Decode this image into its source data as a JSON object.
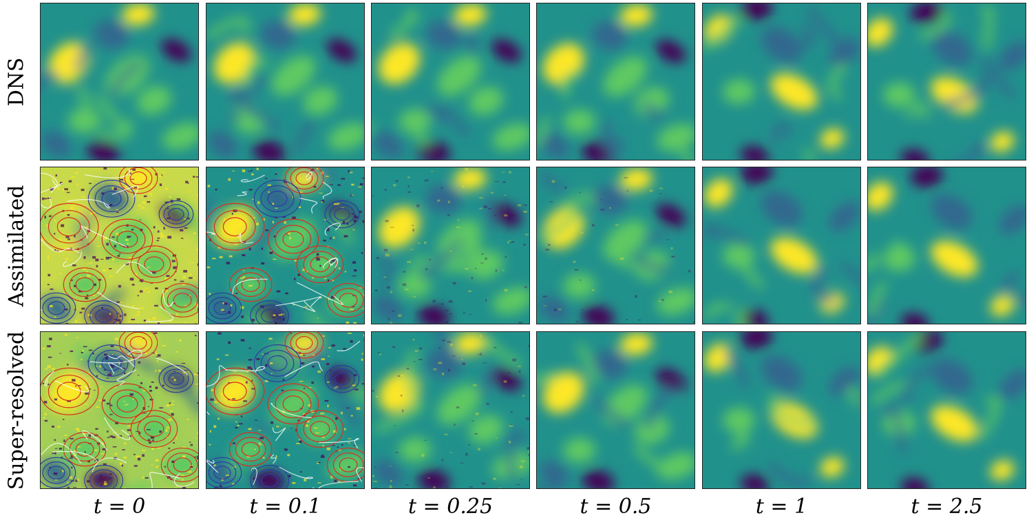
{
  "figure": {
    "rows": [
      {
        "label": "DNS",
        "style": "dns"
      },
      {
        "label": "Assimilated",
        "style": "assim"
      },
      {
        "label": "Super-resolved",
        "style": "super"
      }
    ],
    "columns": [
      {
        "label": "t = 0",
        "t": 0
      },
      {
        "label": "t = 0.1",
        "t": 0.1
      },
      {
        "label": "t = 0.25",
        "t": 0.25
      },
      {
        "label": "t = 0.5",
        "t": 0.5
      },
      {
        "label": "t = 1",
        "t": 1
      },
      {
        "label": "t = 2.5",
        "t": 2.5
      }
    ],
    "colormap": {
      "name": "viridis",
      "low": "#440154",
      "mid_low": "#31688e",
      "mid": "#21918c",
      "mid_high": "#5ec962",
      "high": "#fde725"
    },
    "contour_colors": {
      "positive": "#d7301f",
      "negative": "#2c3e9f",
      "zero": "#ffffff"
    }
  }
}
